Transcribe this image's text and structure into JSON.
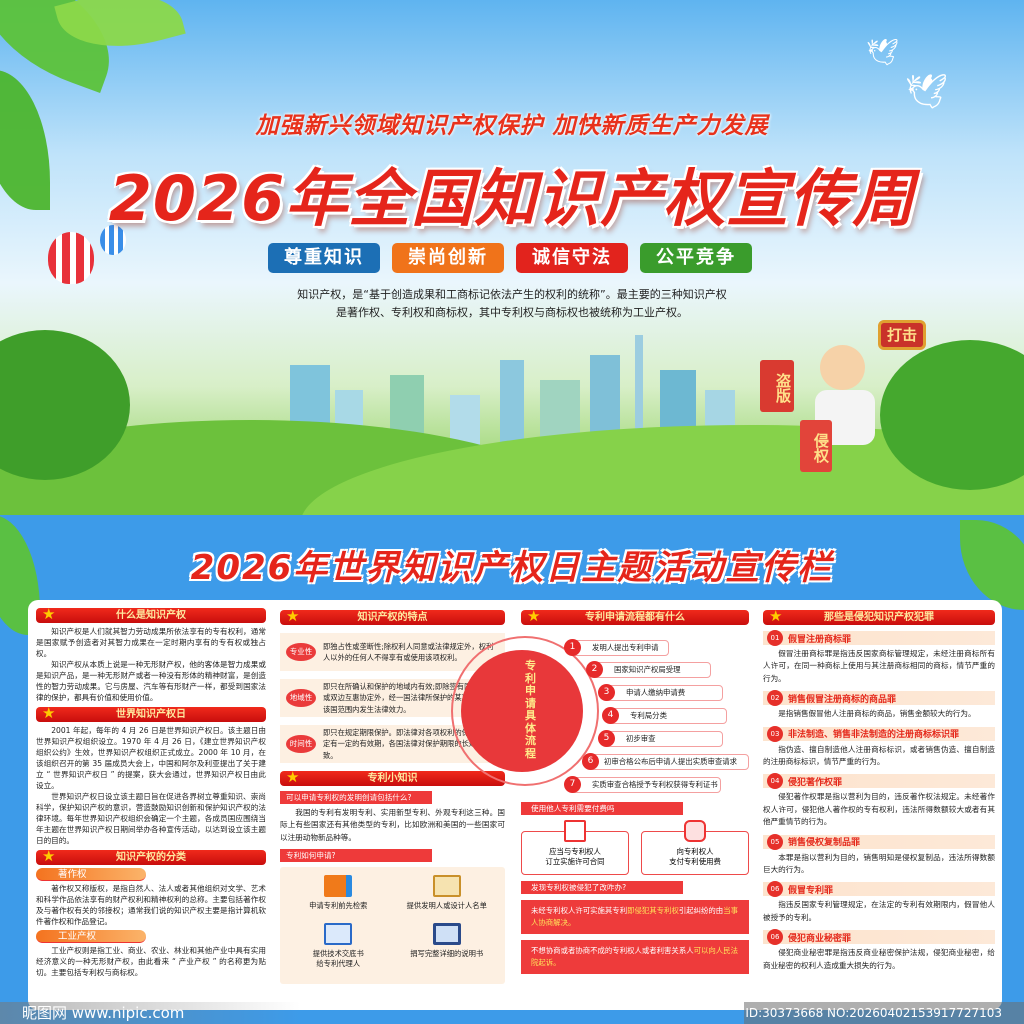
{
  "header": {
    "slogan": "加强新兴领域知识产权保护   加快新质生产力发展",
    "title": "2026年全国知识产权宣传周",
    "badges": [
      {
        "label": "尊重知识",
        "color": "#1c6fb5"
      },
      {
        "label": "崇尚创新",
        "color": "#f0731a"
      },
      {
        "label": "诚信守法",
        "color": "#e2231d"
      },
      {
        "label": "公平竞争",
        "color": "#3a9c2c"
      }
    ],
    "intro_line1": "知识产权，是“基于创造成果和工商标记依法产生的权利的统称”。最主要的三种知识产权",
    "intro_line2": "是著作权、专利权和商标权，其中专利权与商标权也被统称为工业产权。",
    "sign_1": "盗版",
    "sign_2": "侵权",
    "hammer": "打击"
  },
  "section_title": "2026年世界知识产权日主题活动宣传栏",
  "col1": {
    "h1": "什么是知识产权",
    "p1": "知识产权是人们就其智力劳动成果所依法享有的专有权利，通常是国家赋予创造者对其智力成果在一定时期内享有的专有权或独占权。",
    "p2": "知识产权从本质上说是一种无形财产权，他的客体是智力成果或是知识产品，是一种无形财产或者一种没有形体的精神财富，是创造性的智力劳动成果。它与房屋、汽车等有形财产一样，都受到国家法律的保护，都具有价值和使用价值。",
    "h2": "世界知识产权日",
    "p3": "2001 年起，每年的 4 月 26 日是世界知识产权日。该主题日由世界知识产权组织设立。1970 年 4 月 26 日，《建立世界知识产权组织公约》生效，世界知识产权组织正式成立。2000 年 10 月，在该组织召开的第 35 届成员大会上，中国和阿尔及利亚提出了关于建立 “ 世界知识产权日 ” 的提案，获大会通过，世界知识产权日由此设立。",
    "p4": "世界知识产权日设立该主题日旨在促进各界树立尊重知识、崇尚科学，保护知识产权的意识，营造鼓励知识创新和保护知识产权的法律环境。每年世界知识产权组织会确定一个主题，各成员国应围绕当年主题在世界知识产权日期间举办各种宣传活动，以达到设立该主题日的目的。",
    "h3": "知识产权的分类",
    "sub1": "著作权",
    "p5": "著作权又称版权，是指自然人、法人或者其他组织对文学、艺术和科学作品依法享有的财产权利和精神权利的总称。主要包括著作权及与著作权有关的邻接权；通常我们说的知识产权主要是指计算机软件著作权和作品登记。",
    "sub2": "工业产权",
    "p6": "工业产权则是指工业、商业、农业、林业和其他产业中具有实用经济意义的一种无形财产权，由此看来 “ 产业产权 ” 的名称更为贴切。主要包括专利权与商标权。"
  },
  "col2": {
    "h1": "知识产权的特点",
    "features": [
      {
        "tag": "专业性",
        "text": "即独占性或垄断性;除权利人同意或法律规定外，权利人以外的任何人不得享有或使用该项权利。"
      },
      {
        "tag": "地域性",
        "text": "即只在所确认和保护的地域内有效;即除签有国际公约或双边互惠协定外，经一国法律所保护的某项权利只在该国范围内发生法律效力。"
      },
      {
        "tag": "时间性",
        "text": "即只在规定期限保护。即法律对各项权利的保护，都规定有一定的有效期，各国法律对保护期限的长短可能一致。"
      }
    ],
    "h2": "专利小知识",
    "q1": "可以申请专利权的发明创请包括什么?",
    "p1": "我国的专利有发明专利、实用新型专利、外观专利这三种。国际上有些国家还有其他类型的专利，比如欧洲和美国的一些国家可以注册动物新品种等。",
    "q2": "专利如何申请?",
    "apply": [
      {
        "label": "申请专利前先检索",
        "icon": "folder-search-icon"
      },
      {
        "label": "提供发明人或设计人名单",
        "icon": "clipboard-magnifier-icon"
      },
      {
        "label": "提供技术交底书\n给专利代理人",
        "icon": "document-screen-icon"
      },
      {
        "label": "捐写完整详细的说明书",
        "icon": "monitor-icon"
      }
    ]
  },
  "col3": {
    "h1": "专利申请流程都有什么",
    "center_label": "专利申请具体流程",
    "steps": [
      "发明人提出专利申请",
      "国家知识产权局受理",
      "申请人缴纳申请费",
      "专利局分类",
      "初步审查",
      "初审合格公布后申请人提出实质审查请求",
      "实质审查合格授予专利权获得专利证书"
    ],
    "q1": "使用他人专利需要付费吗",
    "fee1_a": "应当与专利权人",
    "fee1_b": "订立实施许可合同",
    "fee2_a": "向专利权人",
    "fee2_b": "支付专利使用费",
    "q2": "发现专利权被侵犯了改咋办?",
    "r1_a": "未经专利权人许可实施其专利",
    "r1_hl": "即侵犯其专利权",
    "r1_b": "引起纠纷的由",
    "r1_hl2": "当事人协商解决。",
    "r2_a": "不想协商或者协商不成的专利权人或者利害关系人",
    "r2_hl": "可以向人民法院起诉。"
  },
  "col4": {
    "h1": "那些是侵犯知识产权犯罪",
    "items": [
      {
        "num": "01",
        "title": "假冒注册商标罪",
        "text": "假冒注册商标罪是指违反国家商标管理规定，未经注册商标所有人许可，在同一种商标上使用与其注册商标相同的商标，情节严重的行为。"
      },
      {
        "num": "02",
        "title": "销售假冒注册商标的商品罪",
        "text": "是指销售假冒他人注册商标的商品，销售金额较大的行为。"
      },
      {
        "num": "03",
        "title": "非法制造、销售非法制造的注册商标标识罪",
        "text": "指伪造、擅自制造他人注册商标标识，或者销售伪造、擅自制造的注册商标标识，情节严重的行为。"
      },
      {
        "num": "04",
        "title": "侵犯著作权罪",
        "text": "侵犯著作权罪是指以营利为目的，违反著作权法规定。未经著作权人许可，侵犯他人著作权的专有权利，违法所得数额较大或者有其他严重情节的行为。"
      },
      {
        "num": "05",
        "title": "销售侵权复制品罪",
        "text": "本罪是指以营利为目的，销售明知是侵权复制品，违法所得数额巨大的行为。"
      },
      {
        "num": "06",
        "title": "假冒专利罪",
        "text": "指违反国家专利管理规定，在法定的专利有效期限内，假冒他人被授予的专利。"
      },
      {
        "num": "06",
        "title": "侵犯商业秘密罪",
        "text": "侵犯商业秘密罪是指违反商业秘密保护法规，侵犯商业秘密，给商业秘密的权利人造成重大损失的行为。"
      }
    ]
  },
  "watermark": {
    "site": "昵图网 www.nipic.com",
    "id": "ID:30373668 NO:20260402153917727103"
  }
}
